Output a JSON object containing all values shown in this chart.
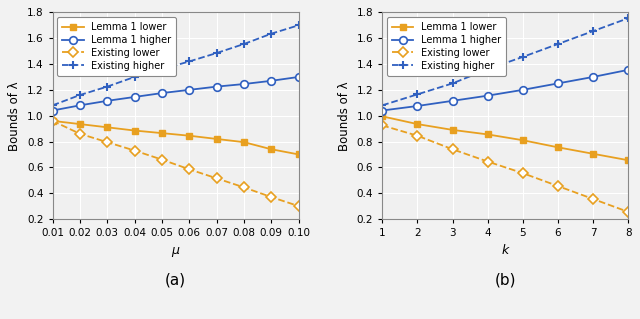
{
  "subplot_a": {
    "xlabel": "μ",
    "ylabel": "Bounds of λ",
    "label": "(a)",
    "xlim": [
      0.01,
      0.1
    ],
    "ylim": [
      0.2,
      1.8
    ],
    "xticks": [
      0.01,
      0.02,
      0.03,
      0.04,
      0.05,
      0.06,
      0.07,
      0.08,
      0.09,
      0.1
    ],
    "yticks": [
      0.2,
      0.4,
      0.6,
      0.8,
      1.0,
      1.2,
      1.4,
      1.6,
      1.8
    ],
    "x": [
      0.01,
      0.02,
      0.03,
      0.04,
      0.05,
      0.06,
      0.07,
      0.08,
      0.09,
      0.1
    ],
    "lemma1_lower": [
      0.96,
      0.935,
      0.91,
      0.885,
      0.865,
      0.845,
      0.82,
      0.795,
      0.74,
      0.7
    ],
    "lemma1_higher": [
      1.04,
      1.08,
      1.115,
      1.145,
      1.175,
      1.2,
      1.225,
      1.245,
      1.27,
      1.3
    ],
    "existing_lower": [
      0.96,
      0.86,
      0.795,
      0.73,
      0.66,
      0.585,
      0.515,
      0.445,
      0.37,
      0.3
    ],
    "existing_higher": [
      1.08,
      1.16,
      1.225,
      1.3,
      1.36,
      1.42,
      1.485,
      1.555,
      1.635,
      1.7
    ]
  },
  "subplot_b": {
    "xlabel": "k",
    "ylabel": "Bounds of λ",
    "label": "(b)",
    "xlim": [
      1,
      8
    ],
    "ylim": [
      0.2,
      1.8
    ],
    "xticks": [
      1,
      2,
      3,
      4,
      5,
      6,
      7,
      8
    ],
    "yticks": [
      0.2,
      0.4,
      0.6,
      0.8,
      1.0,
      1.2,
      1.4,
      1.6,
      1.8
    ],
    "x": [
      1,
      2,
      3,
      4,
      5,
      6,
      7,
      8
    ],
    "lemma1_lower": [
      0.995,
      0.935,
      0.89,
      0.855,
      0.81,
      0.755,
      0.705,
      0.655
    ],
    "lemma1_higher": [
      1.04,
      1.075,
      1.115,
      1.155,
      1.2,
      1.25,
      1.3,
      1.355
    ],
    "existing_lower": [
      0.925,
      0.845,
      0.74,
      0.645,
      0.555,
      0.455,
      0.355,
      0.255
    ],
    "existing_higher": [
      1.08,
      1.165,
      1.25,
      1.36,
      1.455,
      1.555,
      1.655,
      1.755
    ]
  },
  "colors": {
    "gold": "#E8A020",
    "blue": "#3060C0"
  },
  "legend": {
    "lemma1_lower": "Lemma 1 lower",
    "lemma1_higher": "Lemma 1 higher",
    "existing_lower": "Existing lower",
    "existing_higher": "Existing higher"
  },
  "bg_color": "#F0F0F0",
  "grid_color": "#FFFFFF",
  "figsize": [
    6.4,
    3.19
  ],
  "dpi": 100
}
